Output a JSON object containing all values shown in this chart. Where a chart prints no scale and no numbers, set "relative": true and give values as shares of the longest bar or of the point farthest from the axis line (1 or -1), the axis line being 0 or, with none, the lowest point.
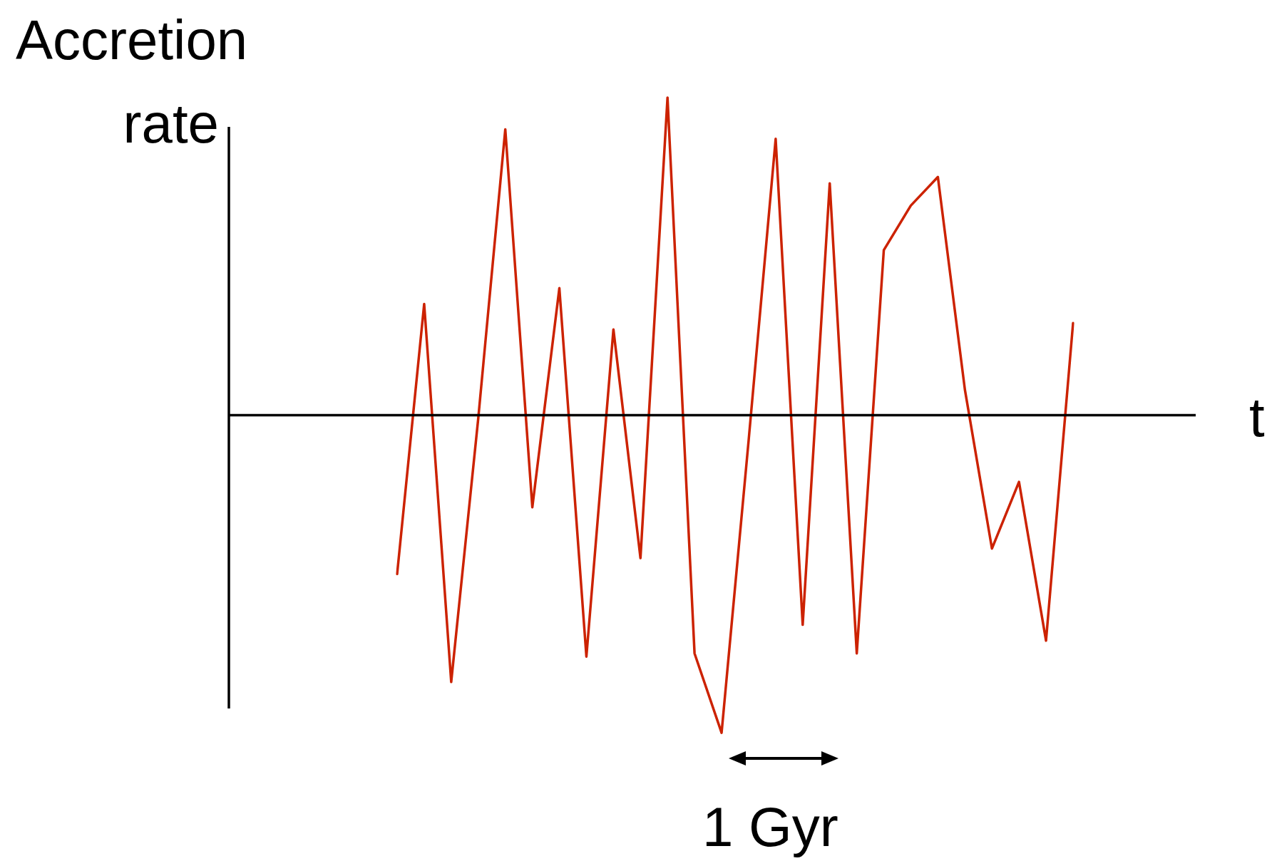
{
  "chart_data": {
    "type": "line",
    "xlabel": "t",
    "ylabel": "Accretion rate",
    "annotations": [
      "1 Gyr"
    ],
    "relative": true,
    "tick_labels": false,
    "marker": "none",
    "categories": [
      null,
      null,
      null,
      null,
      null,
      null,
      null,
      null,
      null,
      null,
      null,
      null,
      null,
      null,
      null,
      null,
      null,
      null,
      null,
      null,
      null,
      null,
      null,
      null,
      null,
      null
    ],
    "series": [
      {
        "color": "#cc2200",
        "values": [
          -0.5,
          0.35,
          -0.84,
          -0.01,
          0.9,
          -0.29,
          0.4,
          -0.76,
          0.27,
          -0.45,
          1.0,
          -0.75,
          -1.0,
          -0.08,
          0.87,
          -0.66,
          0.73,
          -0.75,
          0.52,
          0.66,
          0.75,
          0.08,
          -0.42,
          -0.21,
          -0.71,
          0.29
        ]
      }
    ]
  }
}
